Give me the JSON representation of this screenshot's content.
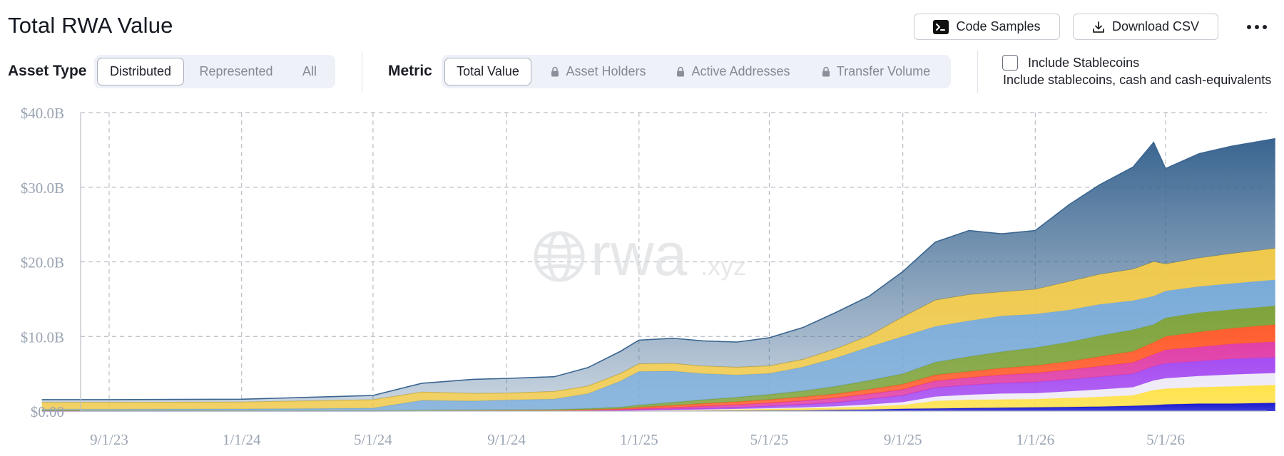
{
  "header": {
    "title": "Total RWA Value",
    "code_samples_label": "Code Samples",
    "download_csv_label": "Download CSV"
  },
  "filters": {
    "asset_type": {
      "label": "Asset Type",
      "options": [
        "Distributed",
        "Represented",
        "All"
      ],
      "selected": "Distributed"
    },
    "metric": {
      "label": "Metric",
      "options": [
        "Total Value",
        "Asset Holders",
        "Active Addresses",
        "Transfer Volume"
      ],
      "locked": [
        "Asset Holders",
        "Active Addresses",
        "Transfer Volume"
      ],
      "selected": "Total Value"
    },
    "stablecoins": {
      "checked": false,
      "label": "Include Stablecoins",
      "description": "Include stablecoins, cash and cash-equivalents"
    }
  },
  "watermark": {
    "main": "rwa",
    "suffix": ".xyz"
  },
  "chart_data": {
    "type": "area",
    "stacked": true,
    "x": [
      "2023-07-01",
      "2023-09-01",
      "2023-11-01",
      "2024-01-01",
      "2024-03-01",
      "2024-05-01",
      "2024-06-15",
      "2024-08-01",
      "2024-09-01",
      "2024-10-15",
      "2024-11-15",
      "2024-12-15",
      "2025-01-01",
      "2025-02-01",
      "2025-03-01",
      "2025-04-01",
      "2025-05-01",
      "2025-06-01",
      "2025-07-01",
      "2025-08-01",
      "2025-09-01",
      "2025-10-01",
      "2025-11-01",
      "2025-12-01",
      "2026-01-01",
      "2026-02-01",
      "2026-03-01",
      "2026-04-01",
      "2026-04-20",
      "2026-05-01",
      "2026-06-01",
      "2026-07-01",
      "2026-08-10"
    ],
    "series": [
      {
        "color": "#1a1ad1",
        "values": [
          0.02,
          0.02,
          0.02,
          0.02,
          0.02,
          0.02,
          0.03,
          0.03,
          0.03,
          0.03,
          0.03,
          0.04,
          0.04,
          0.05,
          0.06,
          0.07,
          0.08,
          0.1,
          0.15,
          0.2,
          0.3,
          0.35,
          0.4,
          0.45,
          0.5,
          0.55,
          0.6,
          0.7,
          0.8,
          0.9,
          1.0,
          1.0,
          1.1
        ]
      },
      {
        "color": "#ffe24a",
        "values": [
          0.02,
          0.02,
          0.02,
          0.02,
          0.02,
          0.02,
          0.03,
          0.03,
          0.03,
          0.03,
          0.03,
          0.04,
          0.05,
          0.08,
          0.1,
          0.15,
          0.2,
          0.25,
          0.3,
          0.4,
          0.5,
          1.0,
          1.1,
          1.1,
          1.1,
          1.2,
          1.3,
          1.4,
          2.0,
          2.1,
          2.2,
          2.3,
          2.4
        ]
      },
      {
        "color": "#eeeaf7",
        "values": [
          0.01,
          0.01,
          0.01,
          0.01,
          0.01,
          0.01,
          0.01,
          0.01,
          0.01,
          0.01,
          0.01,
          0.02,
          0.02,
          0.03,
          0.05,
          0.08,
          0.1,
          0.15,
          0.2,
          0.3,
          0.4,
          0.6,
          0.7,
          0.8,
          0.8,
          0.9,
          1.0,
          1.1,
          1.3,
          1.4,
          1.5,
          1.6,
          1.6
        ]
      },
      {
        "color": "#a64df2",
        "values": [
          0.01,
          0.01,
          0.01,
          0.01,
          0.01,
          0.01,
          0.01,
          0.01,
          0.01,
          0.01,
          0.01,
          0.02,
          0.05,
          0.1,
          0.15,
          0.2,
          0.3,
          0.4,
          0.5,
          0.7,
          0.9,
          1.2,
          1.3,
          1.4,
          1.5,
          1.6,
          1.7,
          1.8,
          1.9,
          2.0,
          2.0,
          2.1,
          2.1
        ]
      },
      {
        "color": "#e040a8",
        "values": [
          0.01,
          0.01,
          0.01,
          0.01,
          0.01,
          0.01,
          0.01,
          0.01,
          0.01,
          0.01,
          0.05,
          0.1,
          0.15,
          0.2,
          0.3,
          0.35,
          0.4,
          0.5,
          0.6,
          0.7,
          0.8,
          0.9,
          1.0,
          1.1,
          1.2,
          1.3,
          1.4,
          1.5,
          1.6,
          1.8,
          1.9,
          2.0,
          2.1
        ]
      },
      {
        "color": "#ff5d2e",
        "values": [
          0.01,
          0.01,
          0.01,
          0.01,
          0.01,
          0.01,
          0.01,
          0.01,
          0.01,
          0.02,
          0.05,
          0.1,
          0.2,
          0.3,
          0.35,
          0.4,
          0.45,
          0.5,
          0.55,
          0.6,
          0.7,
          0.8,
          0.8,
          0.9,
          1.0,
          1.1,
          1.3,
          1.5,
          1.6,
          1.8,
          2.0,
          2.1,
          2.3
        ]
      },
      {
        "color": "#7fa33c",
        "values": [
          0.01,
          0.01,
          0.01,
          0.01,
          0.01,
          0.02,
          0.03,
          0.05,
          0.08,
          0.1,
          0.15,
          0.2,
          0.3,
          0.4,
          0.5,
          0.6,
          0.7,
          0.8,
          1.0,
          1.2,
          1.4,
          1.7,
          2.0,
          2.2,
          2.4,
          2.6,
          2.8,
          2.9,
          2.4,
          2.5,
          2.6,
          2.5,
          2.5
        ]
      },
      {
        "color": "#7aabd8",
        "values": [
          0.15,
          0.15,
          0.18,
          0.2,
          0.25,
          0.3,
          1.3,
          1.2,
          1.3,
          1.4,
          2.0,
          3.5,
          4.5,
          4.2,
          3.5,
          3.0,
          2.8,
          3.2,
          3.8,
          4.5,
          5.0,
          4.8,
          4.8,
          4.8,
          4.5,
          4.3,
          4.2,
          3.9,
          3.8,
          3.6,
          3.5,
          3.5,
          3.5
        ]
      },
      {
        "color": "#efc94c",
        "values": [
          0.9,
          0.9,
          0.9,
          0.9,
          1.0,
          1.1,
          1.1,
          1.0,
          0.9,
          1.0,
          1.0,
          1.0,
          1.0,
          1.0,
          1.0,
          1.0,
          1.0,
          1.0,
          1.2,
          1.5,
          2.6,
          3.5,
          3.5,
          3.2,
          3.3,
          3.8,
          4.0,
          4.2,
          4.6,
          3.6,
          3.8,
          4.0,
          4.2
        ]
      },
      {
        "color": "#3a6590",
        "values": [
          0.4,
          0.4,
          0.4,
          0.4,
          0.5,
          0.6,
          1.2,
          1.9,
          2.0,
          2.0,
          2.5,
          3.0,
          3.2,
          3.4,
          3.4,
          3.4,
          3.8,
          4.3,
          4.9,
          5.3,
          6.1,
          7.8,
          8.6,
          7.8,
          7.9,
          10.3,
          12.0,
          13.7,
          16.0,
          12.8,
          14.0,
          14.4,
          14.7
        ]
      }
    ],
    "y_ticks": [
      "$0.00",
      "$10.0B",
      "$20.0B",
      "$30.0B",
      "$40.0B"
    ],
    "x_ticks": [
      {
        "date": "2023-09-01",
        "label": "9/1/23"
      },
      {
        "date": "2024-01-01",
        "label": "1/1/24"
      },
      {
        "date": "2024-05-01",
        "label": "5/1/24"
      },
      {
        "date": "2024-09-01",
        "label": "9/1/24"
      },
      {
        "date": "2025-01-01",
        "label": "1/1/25"
      },
      {
        "date": "2025-05-01",
        "label": "5/1/25"
      },
      {
        "date": "2025-09-01",
        "label": "9/1/25"
      },
      {
        "date": "2026-01-01",
        "label": "1/1/26"
      },
      {
        "date": "2026-05-01",
        "label": "5/1/26"
      }
    ],
    "ylim": [
      0,
      40
    ],
    "grid": true
  }
}
